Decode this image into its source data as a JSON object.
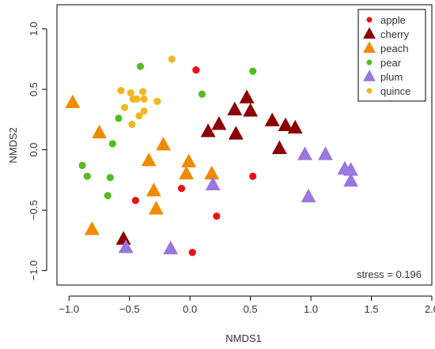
{
  "chart_data": {
    "type": "scatter",
    "xlabel": "NMDS1",
    "ylabel": "NMDS2",
    "xlim": [
      -1.1,
      2.0
    ],
    "ylim": [
      -1.12,
      1.2
    ],
    "x_ticks": [
      -1.0,
      -0.5,
      0.0,
      0.5,
      1.0,
      1.5,
      2.0
    ],
    "x_tick_labels": [
      "−1.0",
      "−0.5",
      "0.0",
      "0.5",
      "1.0",
      "1.5",
      "2.0"
    ],
    "y_ticks": [
      -1.0,
      -0.5,
      0.0,
      0.5,
      1.0
    ],
    "y_tick_labels": [
      "−1.0",
      "−0.5",
      "0.0",
      "0.5",
      "1.0"
    ],
    "legend_position": "top-right",
    "annotation": "stress = 0.196",
    "grid": false,
    "series": [
      {
        "name": "apple",
        "shape": "circle",
        "color": "#ee1111",
        "points": [
          [
            0.05,
            0.66
          ],
          [
            0.52,
            -0.22
          ],
          [
            -0.45,
            -0.42
          ],
          [
            -0.07,
            -0.32
          ],
          [
            0.22,
            -0.55
          ],
          [
            0.02,
            -0.85
          ]
        ]
      },
      {
        "name": "cherry",
        "shape": "triangle",
        "color": "#8b0000",
        "points": [
          [
            0.15,
            0.15
          ],
          [
            0.24,
            0.21
          ],
          [
            0.37,
            0.33
          ],
          [
            0.47,
            0.43
          ],
          [
            0.5,
            0.32
          ],
          [
            0.38,
            0.13
          ],
          [
            0.68,
            0.24
          ],
          [
            0.79,
            0.2
          ],
          [
            0.87,
            0.18
          ],
          [
            0.74,
            0.01
          ],
          [
            -0.55,
            -0.74
          ]
        ]
      },
      {
        "name": "peach",
        "shape": "triangle",
        "color": "#f08a00",
        "points": [
          [
            -0.97,
            0.39
          ],
          [
            -0.75,
            0.14
          ],
          [
            -0.22,
            0.04
          ],
          [
            -0.34,
            -0.09
          ],
          [
            -0.01,
            -0.1
          ],
          [
            -0.03,
            -0.2
          ],
          [
            0.18,
            -0.2
          ],
          [
            -0.3,
            -0.34
          ],
          [
            -0.28,
            -0.49
          ],
          [
            -0.81,
            -0.66
          ]
        ]
      },
      {
        "name": "pear",
        "shape": "circle",
        "color": "#55bb22",
        "points": [
          [
            -0.41,
            0.69
          ],
          [
            0.1,
            0.46
          ],
          [
            0.52,
            0.65
          ],
          [
            -0.59,
            0.26
          ],
          [
            -0.64,
            0.05
          ],
          [
            -0.89,
            -0.13
          ],
          [
            -0.85,
            -0.22
          ],
          [
            -0.66,
            -0.23
          ],
          [
            -0.68,
            -0.38
          ]
        ]
      },
      {
        "name": "plum",
        "shape": "triangle",
        "color": "#9977dd",
        "points": [
          [
            0.95,
            -0.04
          ],
          [
            1.12,
            -0.04
          ],
          [
            1.28,
            -0.16
          ],
          [
            1.33,
            -0.17
          ],
          [
            1.33,
            -0.26
          ],
          [
            0.98,
            -0.39
          ],
          [
            0.19,
            -0.29
          ],
          [
            -0.53,
            -0.81
          ],
          [
            -0.16,
            -0.82
          ]
        ]
      },
      {
        "name": "quince",
        "shape": "circle",
        "color": "#f0b820",
        "points": [
          [
            -0.15,
            0.75
          ],
          [
            -0.57,
            0.49
          ],
          [
            -0.49,
            0.47
          ],
          [
            -0.39,
            0.48
          ],
          [
            -0.54,
            0.35
          ],
          [
            -0.47,
            0.42
          ],
          [
            -0.44,
            0.42
          ],
          [
            -0.38,
            0.42
          ],
          [
            -0.27,
            0.4
          ],
          [
            -0.42,
            0.28
          ],
          [
            -0.38,
            0.32
          ],
          [
            -0.48,
            0.21
          ]
        ]
      }
    ]
  }
}
